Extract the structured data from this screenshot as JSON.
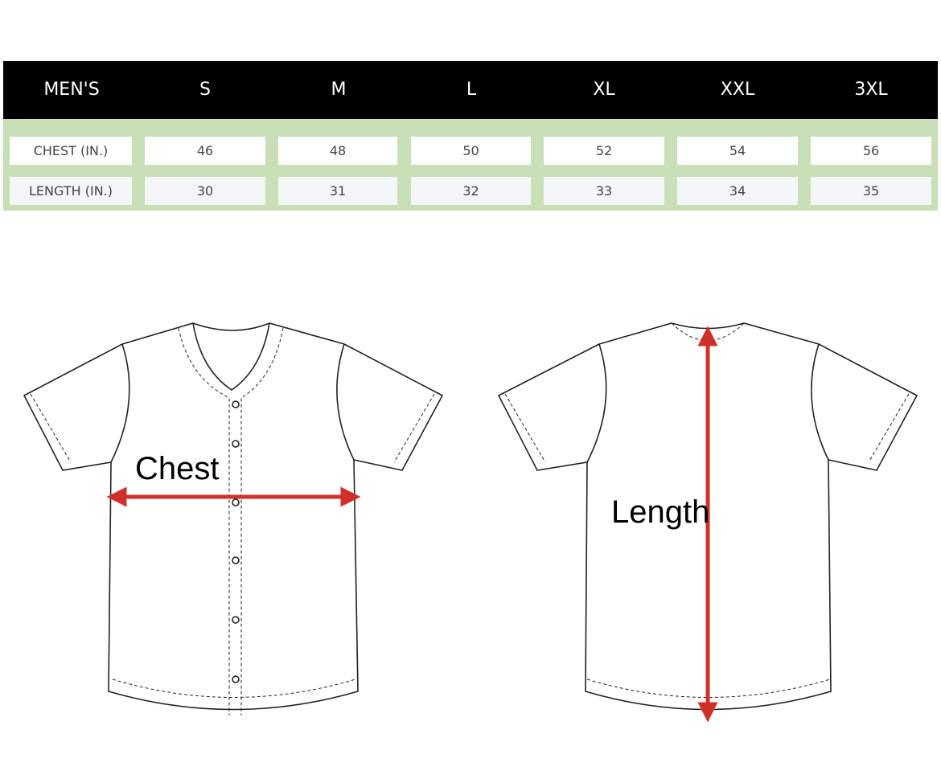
{
  "table": {
    "header": [
      "MEN'S",
      "S",
      "M",
      "L",
      "XL",
      "XXL",
      "3XL"
    ],
    "rows": [
      {
        "label": "CHEST (IN.)",
        "values": [
          "46",
          "48",
          "50",
          "52",
          "54",
          "56"
        ]
      },
      {
        "label": "LENGTH (IN.)",
        "values": [
          "30",
          "31",
          "32",
          "33",
          "34",
          "35"
        ]
      }
    ]
  },
  "diagram": {
    "front_label": "Chest",
    "back_label": "Length",
    "arrow_color": "#d0302a"
  },
  "colors": {
    "header_bg": "#000000",
    "band_bg": "#c8dfb8"
  }
}
